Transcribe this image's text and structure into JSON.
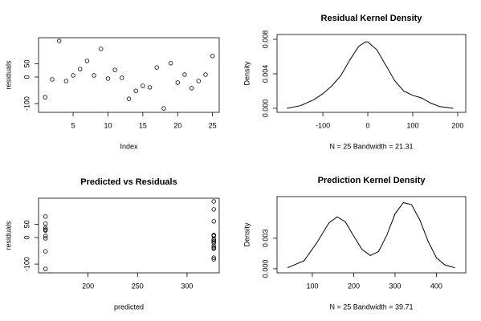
{
  "chart_data": [
    {
      "type": "scatter",
      "xlabel": "Index",
      "ylabel": "residuals",
      "x": [
        1,
        2,
        3,
        4,
        5,
        6,
        7,
        8,
        9,
        10,
        11,
        12,
        13,
        14,
        15,
        16,
        17,
        18,
        19,
        20,
        21,
        22,
        23,
        24,
        25
      ],
      "y": [
        -76,
        -9,
        136,
        -15,
        6,
        30,
        61,
        6,
        106,
        -6,
        27,
        -3,
        -82,
        -52,
        -33,
        -39,
        36,
        -118,
        52,
        -21,
        9,
        -42,
        -15,
        9,
        79
      ],
      "xlim": [
        0.04,
        25.96
      ],
      "ylim": [
        -133,
        148
      ],
      "xticks": [
        5,
        10,
        15,
        20,
        25
      ],
      "yticks": [
        -100,
        0,
        50
      ]
    },
    {
      "type": "line",
      "title": "Residual Kernel Density",
      "xlabel": "N = 25   Bandwidth = 21.31",
      "ylabel": "Density",
      "x": [
        -180,
        -150,
        -120,
        -100,
        -80,
        -60,
        -40,
        -20,
        -5,
        0,
        20,
        40,
        60,
        80,
        100,
        120,
        140,
        160,
        190
      ],
      "y": [
        0,
        0.0003,
        0.001,
        0.0017,
        0.0026,
        0.0038,
        0.0056,
        0.0072,
        0.0077,
        0.0077,
        0.0068,
        0.005,
        0.0032,
        0.002,
        0.0015,
        0.0012,
        0.0006,
        0.0002,
        0
      ],
      "xlim": [
        -202,
        218
      ],
      "ylim": [
        -0.00047,
        0.00856
      ],
      "xticks": [
        -100,
        0,
        100,
        200
      ],
      "yticks": [
        {
          "value": 0,
          "label": "0.000"
        },
        {
          "value": 0.004,
          "label": "0.004"
        },
        {
          "value": 0.008,
          "label": "0.008"
        }
      ]
    },
    {
      "type": "scatter",
      "title": "Predicted vs Residuals",
      "xlabel": "predicted",
      "ylabel": "residuals",
      "x": [
        327,
        327,
        327,
        327,
        157,
        157,
        327,
        327,
        327,
        327,
        157,
        157,
        327,
        157,
        327,
        327,
        157,
        157,
        157,
        327,
        327,
        327,
        327,
        327,
        157
      ],
      "y": [
        -76,
        -9,
        136,
        -15,
        6,
        30,
        61,
        6,
        106,
        -6,
        27,
        -3,
        -82,
        -52,
        -33,
        -39,
        36,
        -118,
        52,
        -21,
        9,
        -42,
        -15,
        9,
        79
      ],
      "xlim": [
        150,
        332.5
      ],
      "ylim": [
        -133,
        148
      ],
      "xticks": [
        200,
        250,
        300
      ],
      "yticks": [
        -100,
        0,
        50
      ]
    },
    {
      "type": "line",
      "title": "Prediction Kernel Density",
      "xlabel": "N = 25   Bandwidth = 39.71",
      "ylabel": "Density",
      "x": [
        40,
        80,
        110,
        140,
        160,
        180,
        200,
        220,
        240,
        260,
        280,
        300,
        320,
        340,
        360,
        380,
        400,
        420,
        445
      ],
      "y": [
        0.0001,
        0.0008,
        0.0025,
        0.0045,
        0.0051,
        0.0046,
        0.0032,
        0.0019,
        0.0013,
        0.0017,
        0.0033,
        0.0054,
        0.0065,
        0.0063,
        0.0048,
        0.0027,
        0.0011,
        0.0004,
        0.0001
      ],
      "xlim": [
        14.6,
        471
      ],
      "ylim": [
        -0.0004,
        0.00709
      ],
      "xticks": [
        100,
        200,
        300,
        400
      ],
      "yticks": [
        {
          "value": 0,
          "label": "0.000"
        },
        {
          "value": 0.003,
          "label": "0.003"
        }
      ]
    }
  ]
}
